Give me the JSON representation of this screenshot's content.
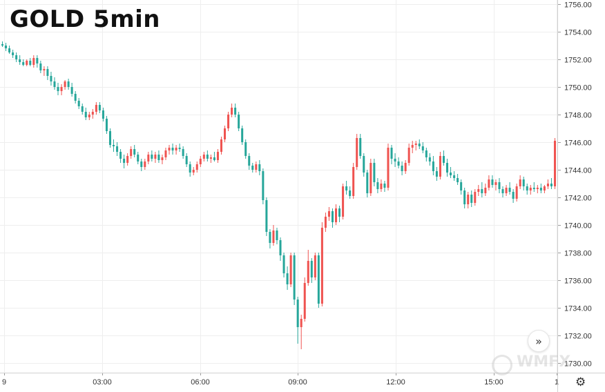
{
  "title": "GOLD 5min",
  "chart_data": {
    "type": "candlestick",
    "title": "GOLD 5min",
    "y_ticks": [
      "1730.00",
      "1732.00",
      "1734.00",
      "1736.00",
      "1738.00",
      "1740.00",
      "1742.00",
      "1744.00",
      "1746.00",
      "1748.00",
      "1750.00",
      "1752.00",
      "1754.00",
      "1756.00"
    ],
    "x_ticks": [
      "9",
      "03:00",
      "06:00",
      "09:00",
      "12:00",
      "15:00",
      "1"
    ],
    "ylim": [
      1729.3,
      1756.3
    ],
    "grid": true,
    "up_color": "#ef5350",
    "down_color": "#26a69a",
    "candles": [
      [
        1753.1,
        1753.3,
        1752.9,
        1753.0
      ],
      [
        1753.0,
        1753.2,
        1752.6,
        1752.8
      ],
      [
        1752.8,
        1753.0,
        1752.4,
        1752.5
      ],
      [
        1752.5,
        1752.7,
        1752.1,
        1752.3
      ],
      [
        1752.3,
        1752.5,
        1751.8,
        1752.0
      ],
      [
        1752.0,
        1752.3,
        1751.6,
        1751.8
      ],
      [
        1751.8,
        1752.0,
        1751.5,
        1751.6
      ],
      [
        1751.6,
        1752.0,
        1751.5,
        1751.9
      ],
      [
        1751.9,
        1752.1,
        1751.5,
        1751.6
      ],
      [
        1751.6,
        1752.3,
        1751.4,
        1752.1
      ],
      [
        1752.1,
        1752.3,
        1751.4,
        1751.7
      ],
      [
        1751.7,
        1751.9,
        1751.0,
        1751.2
      ],
      [
        1751.2,
        1751.5,
        1750.8,
        1751.3
      ],
      [
        1751.3,
        1751.5,
        1750.5,
        1750.8
      ],
      [
        1750.8,
        1751.1,
        1750.1,
        1750.4
      ],
      [
        1750.4,
        1750.7,
        1749.8,
        1750.0
      ],
      [
        1750.0,
        1750.3,
        1749.4,
        1749.7
      ],
      [
        1749.7,
        1750.2,
        1749.4,
        1750.0
      ],
      [
        1750.0,
        1750.5,
        1749.8,
        1750.4
      ],
      [
        1750.4,
        1750.6,
        1749.8,
        1750.0
      ],
      [
        1750.0,
        1750.3,
        1749.3,
        1749.5
      ],
      [
        1749.5,
        1749.7,
        1748.8,
        1749.0
      ],
      [
        1749.0,
        1749.2,
        1748.4,
        1748.6
      ],
      [
        1748.6,
        1748.8,
        1748.0,
        1748.2
      ],
      [
        1748.2,
        1748.5,
        1747.6,
        1747.8
      ],
      [
        1747.8,
        1748.2,
        1747.6,
        1748.0
      ],
      [
        1748.0,
        1748.4,
        1747.7,
        1748.2
      ],
      [
        1748.2,
        1748.9,
        1748.0,
        1748.7
      ],
      [
        1748.7,
        1748.9,
        1748.1,
        1748.3
      ],
      [
        1748.3,
        1748.5,
        1747.5,
        1747.7
      ],
      [
        1747.7,
        1747.9,
        1746.6,
        1746.8
      ],
      [
        1746.8,
        1747.0,
        1745.6,
        1745.8
      ],
      [
        1745.8,
        1746.2,
        1745.3,
        1745.7
      ],
      [
        1745.7,
        1746.0,
        1745.0,
        1745.3
      ],
      [
        1745.3,
        1745.5,
        1744.5,
        1744.8
      ],
      [
        1744.8,
        1745.1,
        1744.1,
        1744.5
      ],
      [
        1744.5,
        1745.2,
        1744.3,
        1745.0
      ],
      [
        1745.0,
        1745.7,
        1744.8,
        1745.5
      ],
      [
        1745.5,
        1745.8,
        1744.9,
        1745.1
      ],
      [
        1745.1,
        1745.3,
        1744.4,
        1744.6
      ],
      [
        1744.6,
        1744.8,
        1743.9,
        1744.2
      ],
      [
        1744.2,
        1744.8,
        1744.0,
        1744.6
      ],
      [
        1744.6,
        1745.3,
        1744.4,
        1745.1
      ],
      [
        1745.1,
        1745.4,
        1744.6,
        1744.8
      ],
      [
        1744.8,
        1745.3,
        1744.5,
        1745.1
      ],
      [
        1745.1,
        1745.4,
        1744.5,
        1744.7
      ],
      [
        1744.7,
        1745.1,
        1744.4,
        1744.9
      ],
      [
        1744.9,
        1745.6,
        1744.7,
        1745.4
      ],
      [
        1745.4,
        1745.8,
        1745.1,
        1745.6
      ],
      [
        1745.6,
        1745.9,
        1745.1,
        1745.4
      ],
      [
        1745.4,
        1745.8,
        1745.1,
        1745.6
      ],
      [
        1745.6,
        1745.9,
        1745.3,
        1745.5
      ],
      [
        1745.5,
        1745.7,
        1744.8,
        1745.0
      ],
      [
        1745.0,
        1745.2,
        1744.2,
        1744.4
      ],
      [
        1744.4,
        1744.6,
        1743.5,
        1743.8
      ],
      [
        1743.8,
        1744.2,
        1743.6,
        1744.0
      ],
      [
        1744.0,
        1744.6,
        1743.8,
        1744.4
      ],
      [
        1744.4,
        1745.0,
        1744.2,
        1744.8
      ],
      [
        1744.8,
        1745.3,
        1744.6,
        1745.1
      ],
      [
        1745.1,
        1745.4,
        1744.6,
        1744.8
      ],
      [
        1744.8,
        1745.1,
        1744.5,
        1744.9
      ],
      [
        1744.9,
        1745.3,
        1744.6,
        1744.7
      ],
      [
        1744.7,
        1745.5,
        1744.5,
        1745.3
      ],
      [
        1745.3,
        1746.4,
        1745.1,
        1746.2
      ],
      [
        1746.2,
        1747.2,
        1746.0,
        1747.0
      ],
      [
        1747.0,
        1748.2,
        1746.8,
        1748.0
      ],
      [
        1748.0,
        1748.8,
        1747.8,
        1748.5
      ],
      [
        1748.5,
        1748.8,
        1747.8,
        1748.0
      ],
      [
        1748.0,
        1748.2,
        1746.8,
        1747.0
      ],
      [
        1747.0,
        1747.2,
        1745.8,
        1746.0
      ],
      [
        1746.0,
        1746.2,
        1744.8,
        1745.0
      ],
      [
        1745.0,
        1745.2,
        1744.0,
        1744.3
      ],
      [
        1744.3,
        1744.5,
        1743.8,
        1744.0
      ],
      [
        1744.0,
        1744.6,
        1743.8,
        1744.4
      ],
      [
        1744.4,
        1744.7,
        1743.6,
        1743.9
      ],
      [
        1743.9,
        1744.1,
        1741.5,
        1741.8
      ],
      [
        1741.8,
        1742.0,
        1739.2,
        1739.5
      ],
      [
        1739.5,
        1739.7,
        1738.3,
        1738.7
      ],
      [
        1738.7,
        1740.0,
        1738.5,
        1739.6
      ],
      [
        1739.6,
        1739.8,
        1738.6,
        1738.9
      ],
      [
        1738.9,
        1739.1,
        1737.4,
        1737.8
      ],
      [
        1737.8,
        1738.0,
        1736.2,
        1736.5
      ],
      [
        1736.5,
        1737.0,
        1735.3,
        1735.7
      ],
      [
        1735.7,
        1738.0,
        1735.5,
        1737.8
      ],
      [
        1737.8,
        1738.0,
        1734.2,
        1734.6
      ],
      [
        1734.6,
        1734.8,
        1731.4,
        1732.6
      ],
      [
        1732.6,
        1733.5,
        1731.0,
        1733.2
      ],
      [
        1733.2,
        1736.2,
        1733.0,
        1735.8
      ],
      [
        1735.8,
        1738.2,
        1735.6,
        1737.4
      ],
      [
        1737.4,
        1737.6,
        1735.8,
        1736.2
      ],
      [
        1736.2,
        1738.0,
        1736.0,
        1737.8
      ],
      [
        1737.8,
        1738.0,
        1734.0,
        1734.3
      ],
      [
        1734.3,
        1740.2,
        1734.1,
        1739.8
      ],
      [
        1739.8,
        1740.9,
        1739.5,
        1740.6
      ],
      [
        1740.6,
        1741.3,
        1740.3,
        1741.0
      ],
      [
        1741.0,
        1741.2,
        1739.8,
        1740.2
      ],
      [
        1740.2,
        1741.5,
        1740.0,
        1741.2
      ],
      [
        1741.2,
        1741.4,
        1740.2,
        1740.6
      ],
      [
        1740.6,
        1743.0,
        1740.4,
        1742.8
      ],
      [
        1742.8,
        1743.2,
        1742.2,
        1742.5
      ],
      [
        1742.5,
        1742.8,
        1741.9,
        1742.1
      ],
      [
        1742.1,
        1744.5,
        1741.9,
        1744.2
      ],
      [
        1744.2,
        1746.6,
        1744.0,
        1746.3
      ],
      [
        1746.3,
        1746.6,
        1744.8,
        1745.0
      ],
      [
        1745.0,
        1745.2,
        1743.5,
        1743.8
      ],
      [
        1743.8,
        1744.0,
        1742.0,
        1742.3
      ],
      [
        1742.3,
        1744.8,
        1742.1,
        1744.5
      ],
      [
        1744.5,
        1744.8,
        1742.8,
        1743.1
      ],
      [
        1743.1,
        1743.4,
        1742.3,
        1742.6
      ],
      [
        1742.6,
        1743.3,
        1742.4,
        1743.0
      ],
      [
        1743.0,
        1743.2,
        1742.4,
        1742.7
      ],
      [
        1742.7,
        1745.9,
        1742.5,
        1745.6
      ],
      [
        1745.6,
        1745.8,
        1744.4,
        1744.8
      ],
      [
        1744.8,
        1745.2,
        1744.2,
        1744.6
      ],
      [
        1744.6,
        1744.9,
        1744.1,
        1744.3
      ],
      [
        1744.3,
        1744.6,
        1743.6,
        1743.9
      ],
      [
        1743.9,
        1744.7,
        1743.7,
        1744.5
      ],
      [
        1744.5,
        1745.9,
        1744.3,
        1745.6
      ],
      [
        1745.6,
        1746.1,
        1745.2,
        1745.8
      ],
      [
        1745.8,
        1746.1,
        1745.4,
        1745.9
      ],
      [
        1745.9,
        1746.2,
        1745.5,
        1745.7
      ],
      [
        1745.7,
        1746.0,
        1745.2,
        1745.4
      ],
      [
        1745.4,
        1745.6,
        1744.6,
        1744.9
      ],
      [
        1744.9,
        1745.2,
        1744.3,
        1744.6
      ],
      [
        1744.6,
        1745.0,
        1743.6,
        1743.9
      ],
      [
        1743.9,
        1744.2,
        1743.2,
        1743.5
      ],
      [
        1743.5,
        1745.3,
        1743.3,
        1745.0
      ],
      [
        1745.0,
        1745.4,
        1744.3,
        1744.5
      ],
      [
        1744.5,
        1744.8,
        1743.5,
        1743.8
      ],
      [
        1743.8,
        1744.2,
        1743.4,
        1743.6
      ],
      [
        1743.6,
        1743.9,
        1743.2,
        1743.4
      ],
      [
        1743.4,
        1743.7,
        1742.9,
        1743.1
      ],
      [
        1743.1,
        1743.3,
        1742.2,
        1742.5
      ],
      [
        1742.5,
        1742.7,
        1741.2,
        1741.5
      ],
      [
        1741.5,
        1742.4,
        1741.2,
        1742.2
      ],
      [
        1742.2,
        1742.5,
        1741.3,
        1741.6
      ],
      [
        1741.6,
        1742.6,
        1741.4,
        1742.4
      ],
      [
        1742.4,
        1742.9,
        1742.1,
        1742.6
      ],
      [
        1742.6,
        1743.1,
        1742.0,
        1742.3
      ],
      [
        1742.3,
        1743.0,
        1742.1,
        1742.7
      ],
      [
        1742.7,
        1743.6,
        1742.5,
        1743.3
      ],
      [
        1743.3,
        1743.6,
        1742.7,
        1742.9
      ],
      [
        1742.9,
        1743.3,
        1742.5,
        1743.1
      ],
      [
        1743.1,
        1743.4,
        1742.3,
        1742.6
      ],
      [
        1742.6,
        1742.8,
        1742.0,
        1742.3
      ],
      [
        1742.3,
        1742.9,
        1742.1,
        1742.7
      ],
      [
        1742.7,
        1743.1,
        1742.2,
        1742.4
      ],
      [
        1742.4,
        1742.6,
        1741.6,
        1741.9
      ],
      [
        1741.9,
        1743.0,
        1741.7,
        1742.8
      ],
      [
        1742.8,
        1743.6,
        1742.6,
        1743.3
      ],
      [
        1743.3,
        1743.5,
        1742.5,
        1742.8
      ],
      [
        1742.8,
        1743.0,
        1742.2,
        1742.5
      ],
      [
        1742.5,
        1742.9,
        1742.2,
        1742.7
      ],
      [
        1742.7,
        1743.1,
        1742.4,
        1742.6
      ],
      [
        1742.6,
        1742.9,
        1742.3,
        1742.7
      ],
      [
        1742.7,
        1743.0,
        1742.3,
        1742.5
      ],
      [
        1742.5,
        1742.9,
        1742.3,
        1742.8
      ],
      [
        1742.8,
        1743.3,
        1742.6,
        1743.0
      ],
      [
        1743.0,
        1743.4,
        1742.6,
        1742.8
      ],
      [
        1742.8,
        1746.3,
        1742.6,
        1746.1
      ]
    ]
  },
  "controls": {
    "scroll_label": "»",
    "settings_label": "⚙",
    "watermark_text": "WMFX"
  }
}
